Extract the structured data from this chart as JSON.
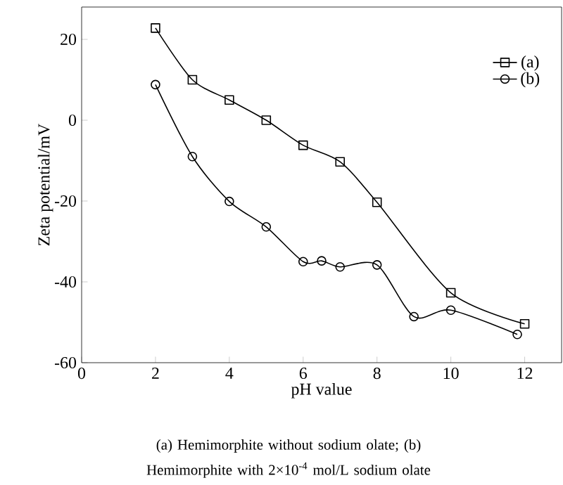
{
  "chart_data": {
    "type": "line",
    "xlabel": "pH value",
    "ylabel": "Zeta potential/mV",
    "xlim": [
      0,
      13
    ],
    "ylim": [
      -60,
      28
    ],
    "xticks": [
      0,
      2,
      4,
      6,
      8,
      10,
      12
    ],
    "yticks": [
      -60,
      -40,
      -20,
      0,
      20
    ],
    "legend": "top right",
    "line_style": "solid",
    "series": [
      {
        "name": "(a)",
        "color": "#000000",
        "marker": "square",
        "x": [
          2,
          3,
          4,
          5,
          6,
          7,
          8,
          10,
          12
        ],
        "values": [
          22.8,
          10,
          5,
          0,
          -6.2,
          -10.3,
          -20.3,
          -42.7,
          -50.4
        ]
      },
      {
        "name": "(b)",
        "color": "#000000",
        "marker": "circle",
        "x": [
          2,
          3,
          4,
          5,
          6,
          6.5,
          7,
          8,
          9,
          10,
          11.8
        ],
        "values": [
          8.8,
          -9,
          -20.1,
          -26.4,
          -35,
          -34.8,
          -36.3,
          -35.8,
          -48.6,
          -47,
          -53
        ]
      }
    ],
    "annotations": [
      "(a) Hemimorphite without sodium olate; (b) Hemimorphite with 2×10$^{-4}$ mol/L sodium olate"
    ]
  }
}
